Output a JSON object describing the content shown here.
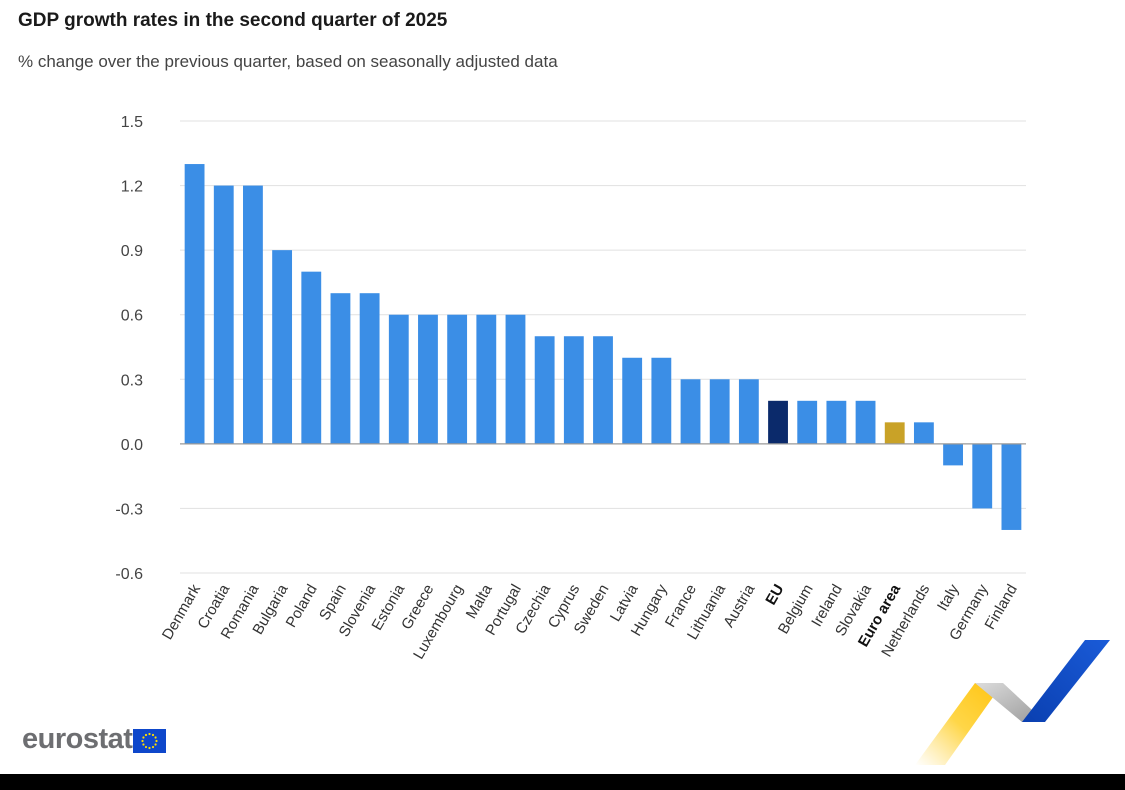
{
  "chart_data": {
    "type": "bar",
    "title": "GDP growth rates in the second quarter of 2025",
    "subtitle": "% change over the previous quarter, based on seasonally adjusted data",
    "xlabel": "",
    "ylabel": "",
    "ylim": [
      -0.6,
      1.5
    ],
    "yticks": [
      "1.5",
      "1.2",
      "0.9",
      "0.6",
      "0.3",
      "0.0",
      "-0.3",
      "-0.6"
    ],
    "ytick_values": [
      1.5,
      1.2,
      0.9,
      0.6,
      0.3,
      0.0,
      -0.3,
      -0.6
    ],
    "grid": true,
    "categories": [
      "Denmark",
      "Croatia",
      "Romania",
      "Bulgaria",
      "Poland",
      "Spain",
      "Slovenia",
      "Estonia",
      "Greece",
      "Luxembourg",
      "Malta",
      "Portugal",
      "Czechia",
      "Cyprus",
      "Sweden",
      "Latvia",
      "Hungary",
      "France",
      "Lithuania",
      "Austria",
      "EU",
      "Belgium",
      "Ireland",
      "Slovakia",
      "Euro area",
      "Netherlands",
      "Italy",
      "Germany",
      "Finland"
    ],
    "values": [
      1.3,
      1.2,
      1.2,
      0.9,
      0.8,
      0.7,
      0.7,
      0.6,
      0.6,
      0.6,
      0.6,
      0.6,
      0.5,
      0.5,
      0.5,
      0.4,
      0.4,
      0.3,
      0.3,
      0.3,
      0.2,
      0.2,
      0.2,
      0.2,
      0.1,
      0.1,
      -0.1,
      -0.3,
      -0.4
    ],
    "highlighted": {
      "EU": "#0b2a6b",
      "Euro area": "#c9a227"
    },
    "bold_categories": [
      "EU",
      "Euro area"
    ]
  },
  "colors": {
    "bar": "#3b8ee6",
    "eu": "#0b2a6b",
    "euro_area": "#c9a227",
    "grid": "#e1e1e1",
    "zero_line": "#999999"
  },
  "logo": {
    "text": "eurostat",
    "icon": "eu-flag-icon"
  }
}
